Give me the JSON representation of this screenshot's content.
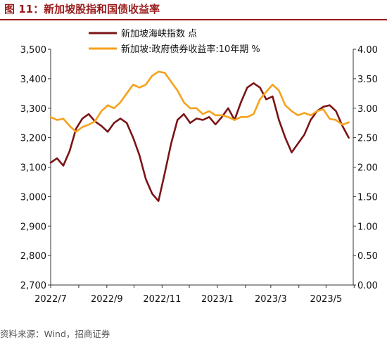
{
  "figure": {
    "title": "图 11：新加坡股指和国债收益率",
    "source": "资料来源：Wind，招商证券"
  },
  "chart_data": {
    "type": "line",
    "x_tick_labels": [
      "2022/7",
      "2022/9",
      "2022/11",
      "2023/1",
      "2023/3",
      "2023/5"
    ],
    "left_axis": {
      "ylim": [
        2700,
        3500
      ],
      "ticks": [
        "2,700",
        "2,800",
        "2,900",
        "3,000",
        "3,100",
        "3,200",
        "3,300",
        "3,400",
        "3,500"
      ]
    },
    "right_axis": {
      "ylim": [
        0.0,
        4.0
      ],
      "ticks": [
        "0.00",
        "0.50",
        "1.00",
        "1.50",
        "2.00",
        "2.50",
        "3.00",
        "3.50",
        "4.00"
      ]
    },
    "legend_position": "top-center",
    "series": [
      {
        "name": "新加坡海峡指数 点",
        "axis": "left",
        "color": "#7b1417",
        "dates": [
          "2022-07-01",
          "2022-07-08",
          "2022-07-15",
          "2022-07-22",
          "2022-07-29",
          "2022-08-05",
          "2022-08-12",
          "2022-08-19",
          "2022-08-26",
          "2022-09-02",
          "2022-09-09",
          "2022-09-16",
          "2022-09-23",
          "2022-09-30",
          "2022-10-07",
          "2022-10-14",
          "2022-10-21",
          "2022-10-28",
          "2022-11-04",
          "2022-11-11",
          "2022-11-18",
          "2022-11-25",
          "2022-12-02",
          "2022-12-09",
          "2022-12-16",
          "2022-12-23",
          "2022-12-30",
          "2023-01-06",
          "2023-01-13",
          "2023-01-20",
          "2023-01-27",
          "2023-02-03",
          "2023-02-10",
          "2023-02-17",
          "2023-02-24",
          "2023-03-03",
          "2023-03-10",
          "2023-03-17",
          "2023-03-24",
          "2023-03-31",
          "2023-04-07",
          "2023-04-14",
          "2023-04-21",
          "2023-04-28",
          "2023-05-05",
          "2023-05-12",
          "2023-05-19",
          "2023-05-26"
        ],
        "values": [
          3115,
          3130,
          3105,
          3155,
          3230,
          3265,
          3280,
          3255,
          3240,
          3220,
          3250,
          3265,
          3250,
          3200,
          3140,
          3060,
          3010,
          2985,
          3080,
          3180,
          3260,
          3280,
          3250,
          3265,
          3260,
          3270,
          3245,
          3270,
          3300,
          3260,
          3320,
          3370,
          3385,
          3370,
          3330,
          3340,
          3260,
          3200,
          3150,
          3180,
          3210,
          3260,
          3290,
          3305,
          3310,
          3290,
          3240,
          3200
        ]
      },
      {
        "name": "新加坡:政府债券收益率:10年期 %",
        "axis": "right",
        "color": "#f5a21b",
        "dates": [
          "2022-07-01",
          "2022-07-08",
          "2022-07-15",
          "2022-07-22",
          "2022-07-29",
          "2022-08-05",
          "2022-08-12",
          "2022-08-19",
          "2022-08-26",
          "2022-09-02",
          "2022-09-09",
          "2022-09-16",
          "2022-09-23",
          "2022-09-30",
          "2022-10-07",
          "2022-10-14",
          "2022-10-21",
          "2022-10-28",
          "2022-11-04",
          "2022-11-11",
          "2022-11-18",
          "2022-11-25",
          "2022-12-02",
          "2022-12-09",
          "2022-12-16",
          "2022-12-23",
          "2022-12-30",
          "2023-01-06",
          "2023-01-13",
          "2023-01-20",
          "2023-01-27",
          "2023-02-03",
          "2023-02-10",
          "2023-02-17",
          "2023-02-24",
          "2023-03-03",
          "2023-03-10",
          "2023-03-17",
          "2023-03-24",
          "2023-03-31",
          "2023-04-07",
          "2023-04-14",
          "2023-04-21",
          "2023-04-28",
          "2023-05-05",
          "2023-05-12",
          "2023-05-19",
          "2023-05-26"
        ],
        "values": [
          2.85,
          2.8,
          2.82,
          2.7,
          2.6,
          2.68,
          2.72,
          2.78,
          2.95,
          3.05,
          3.0,
          3.1,
          3.25,
          3.4,
          3.35,
          3.4,
          3.55,
          3.62,
          3.6,
          3.45,
          3.3,
          3.1,
          3.0,
          3.0,
          2.9,
          2.95,
          2.88,
          2.88,
          2.85,
          2.8,
          2.85,
          2.85,
          2.9,
          3.15,
          3.28,
          3.4,
          3.3,
          3.05,
          2.95,
          2.88,
          2.92,
          2.88,
          2.95,
          2.98,
          2.82,
          2.8,
          2.72,
          2.76
        ]
      }
    ]
  }
}
